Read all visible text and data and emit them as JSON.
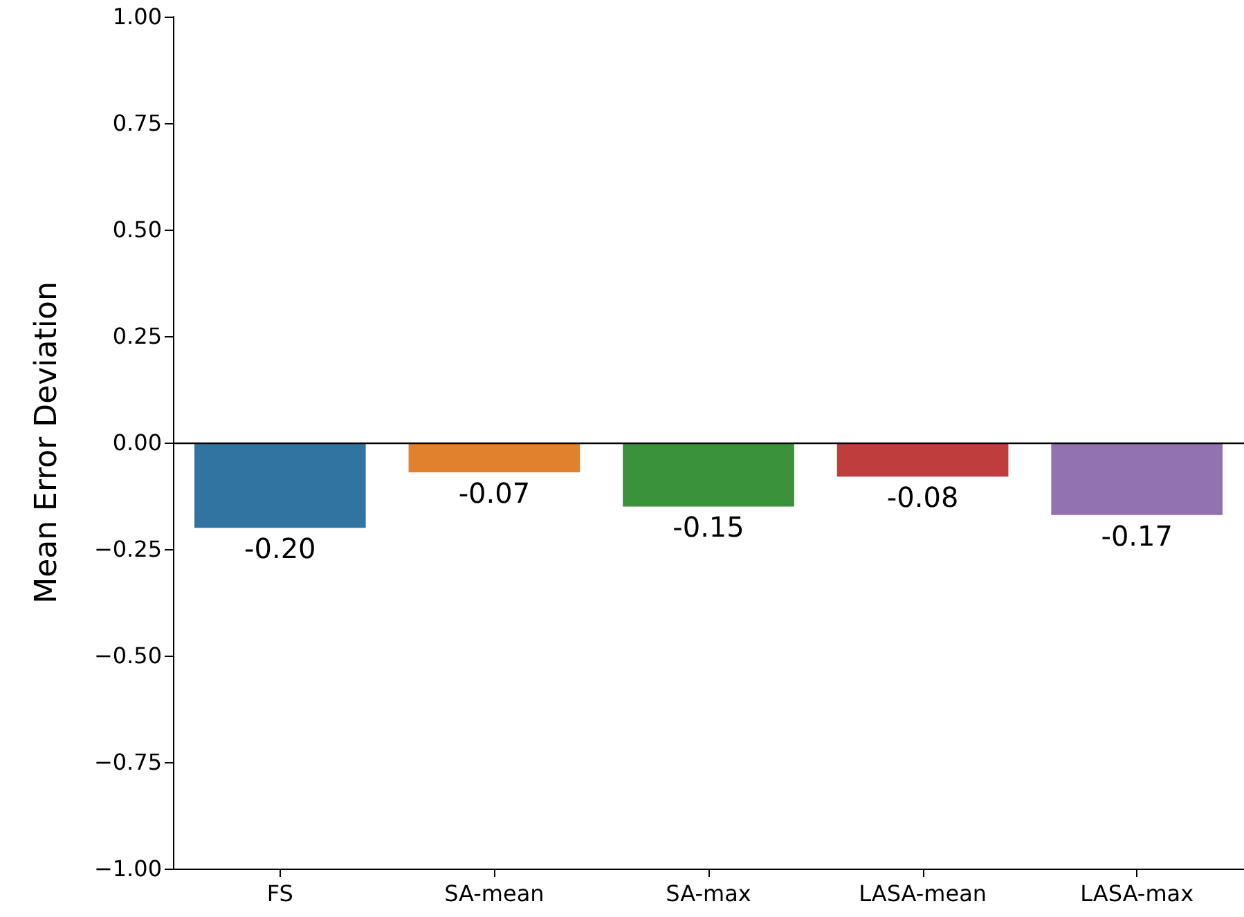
{
  "chart_data": {
    "type": "bar",
    "ylabel": "Mean Error Deviation",
    "categories": [
      "FS",
      "SA-mean",
      "SA-max",
      "LASA-mean",
      "LASA-max"
    ],
    "values": [
      -0.2,
      -0.07,
      -0.15,
      -0.08,
      -0.17
    ],
    "colors": [
      "#3274a1",
      "#e1812c",
      "#3a923a",
      "#c03d3e",
      "#9372b2"
    ],
    "value_labels": [
      "-0.20",
      "-0.07",
      "-0.15",
      "-0.08",
      "-0.17"
    ],
    "ylim": [
      -1,
      1
    ],
    "yticks": [
      {
        "value": -1,
        "label": "−1.00"
      },
      {
        "value": -0.75,
        "label": "−0.75"
      },
      {
        "value": -0.5,
        "label": "−0.50"
      },
      {
        "value": -0.25,
        "label": "−0.25"
      },
      {
        "value": 0,
        "label": "0.00"
      },
      {
        "value": 0.25,
        "label": "0.25"
      },
      {
        "value": 0.5,
        "label": "0.50"
      },
      {
        "value": 0.75,
        "label": "0.75"
      },
      {
        "value": 1,
        "label": "1.00"
      }
    ],
    "ref_lines": [
      {
        "axis": "y",
        "value": 0,
        "color": "#000000"
      }
    ],
    "grid": false
  }
}
